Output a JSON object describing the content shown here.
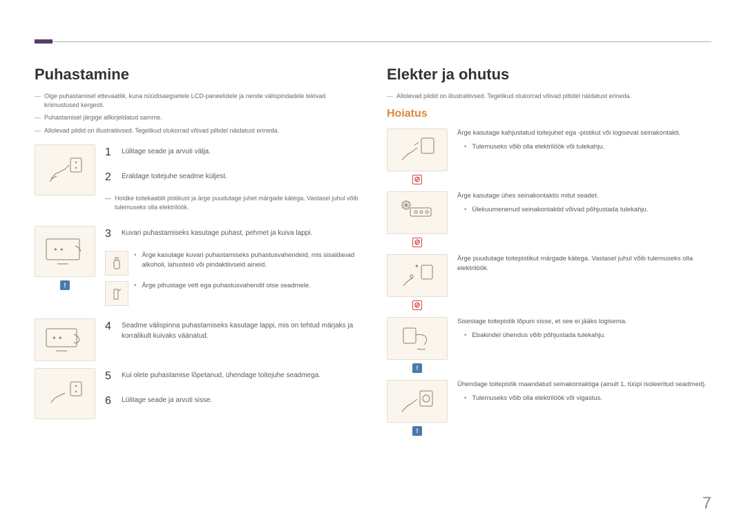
{
  "page_number": "7",
  "left": {
    "title": "Puhastamine",
    "notes": [
      "Olge puhastamisel ettevaatlik, kuna nüüdisaegsetele LCD-paneelidele ja nende välispindadele tekivad kriimustused kergesti.",
      "Puhastamisel järgige allkirjeldatud samme.",
      "Allolevad pildid on illustratiivsed. Tegelikud olukorrad võivad piltidel näidatust erineda."
    ],
    "block1": {
      "steps": [
        {
          "n": "1",
          "t": "Lülitage seade ja arvuti välja."
        },
        {
          "n": "2",
          "t": "Eraldage toitejuhe seadme küljest."
        }
      ],
      "subnote": "Hoidke toitekaablit pistikust ja ärge puudutage juhet märgade kätega. Vastasel juhul võib tulemuseks olla elektrilöök."
    },
    "block2": {
      "step": {
        "n": "3",
        "t": "Kuvari puhastamiseks kasutage puhast, pehmet ja kuiva lappi."
      },
      "bullets": [
        "Ärge kasutage kuvari puhastamiseks puhastusvahendeid, mis sisaldavad alkoholi, lahusteid või pindaktiivseid aineid.",
        "Ärge pihustage vett ega puhastusvahendit otse seadmele."
      ]
    },
    "block3": {
      "step": {
        "n": "4",
        "t": "Seadme välispinna puhastamiseks kasutage lappi, mis on tehtud märjaks ja korralikult kuivaks väänatud."
      }
    },
    "block4": {
      "steps": [
        {
          "n": "5",
          "t": "Kui olete puhastamise lõpetanud, ühendage toitejuhe seadmega."
        },
        {
          "n": "6",
          "t": "Lülitage seade ja arvuti sisse."
        }
      ]
    }
  },
  "right": {
    "title": "Elekter ja ohutus",
    "note": "Allolevad pildid on illustratiivsed. Tegelikud olukorrad võivad piltidel näidatust erineda.",
    "warn_label": "Hoiatus",
    "items": [
      {
        "sym": "red",
        "text": "Ärge kasutage kahjustatud toitejuhet ega -pistikut või logisevat seinakontakti.",
        "bullets": [
          "Tulemuseks võib olla elektrilöök või tulekahju."
        ]
      },
      {
        "sym": "red",
        "text": "Ärge kasutage ühes seinakontaktis mitut seadet.",
        "bullets": [
          "Ülekuumenenud seinakontaktid võivad põhjustada tulekahju."
        ]
      },
      {
        "sym": "red",
        "text": "Ärge puudutage toitepistikut märgade kätega. Vastasel juhul võib tulemuseks olla elektrilöök.",
        "bullets": []
      },
      {
        "sym": "blue",
        "text": "Sisestage toitepistik lõpuni sisse, et see ei jääks logisema.",
        "bullets": [
          "Ebakindel ühendus võib põhjustada tulekahju."
        ]
      },
      {
        "sym": "blue",
        "text": "Ühendage toitepistik maandatud seinakontaktiga (ainult 1. tüüpi isoleeritud seadmed).",
        "bullets": [
          "Tulemuseks võib olla elektrilöök või vigastus."
        ]
      }
    ]
  }
}
